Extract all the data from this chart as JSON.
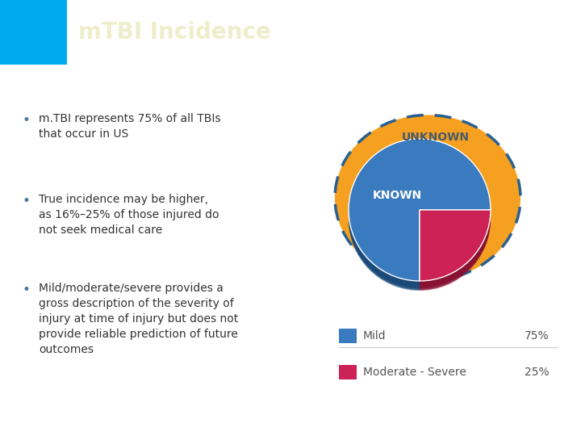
{
  "title": "mTBI Incidence",
  "title_bg_color": "#4a7a9b",
  "title_text_color": "#eeeecc",
  "bg_color": "#ffffff",
  "accent_blue": "#00aaee",
  "bullet_points": [
    "m.TBI represents 75% of all TBIs\nthat occur in US",
    "True incidence may be higher,\nas 16%–25% of those injured do\nnot seek medical care",
    "Mild/moderate/severe provides a\ngross description of the severity of\ninjury at time of injury but does not\nprovide reliable prediction of future\noutcomes"
  ],
  "bullet_color": "#4a7a9b",
  "text_color": "#333333",
  "pie_mild_color": "#3a7bbf",
  "pie_severe_color": "#cc2255",
  "pie_mild_color_dark": "#1a4a7a",
  "pie_severe_color_dark": "#881133",
  "pie_outer_color": "#f5a020",
  "pie_border_color": "#2a6090",
  "pie_label_known": "KNOWN",
  "pie_label_unknown": "UNKNOWN",
  "pie_known_label_color": "#ffffff",
  "pie_unknown_label_color": "#4a5a6a",
  "legend_mild_label": "Mild",
  "legend_severe_label": "Moderate - Severe",
  "legend_mild_pct": "75%",
  "legend_severe_pct": "25%",
  "legend_text_color": "#555555"
}
